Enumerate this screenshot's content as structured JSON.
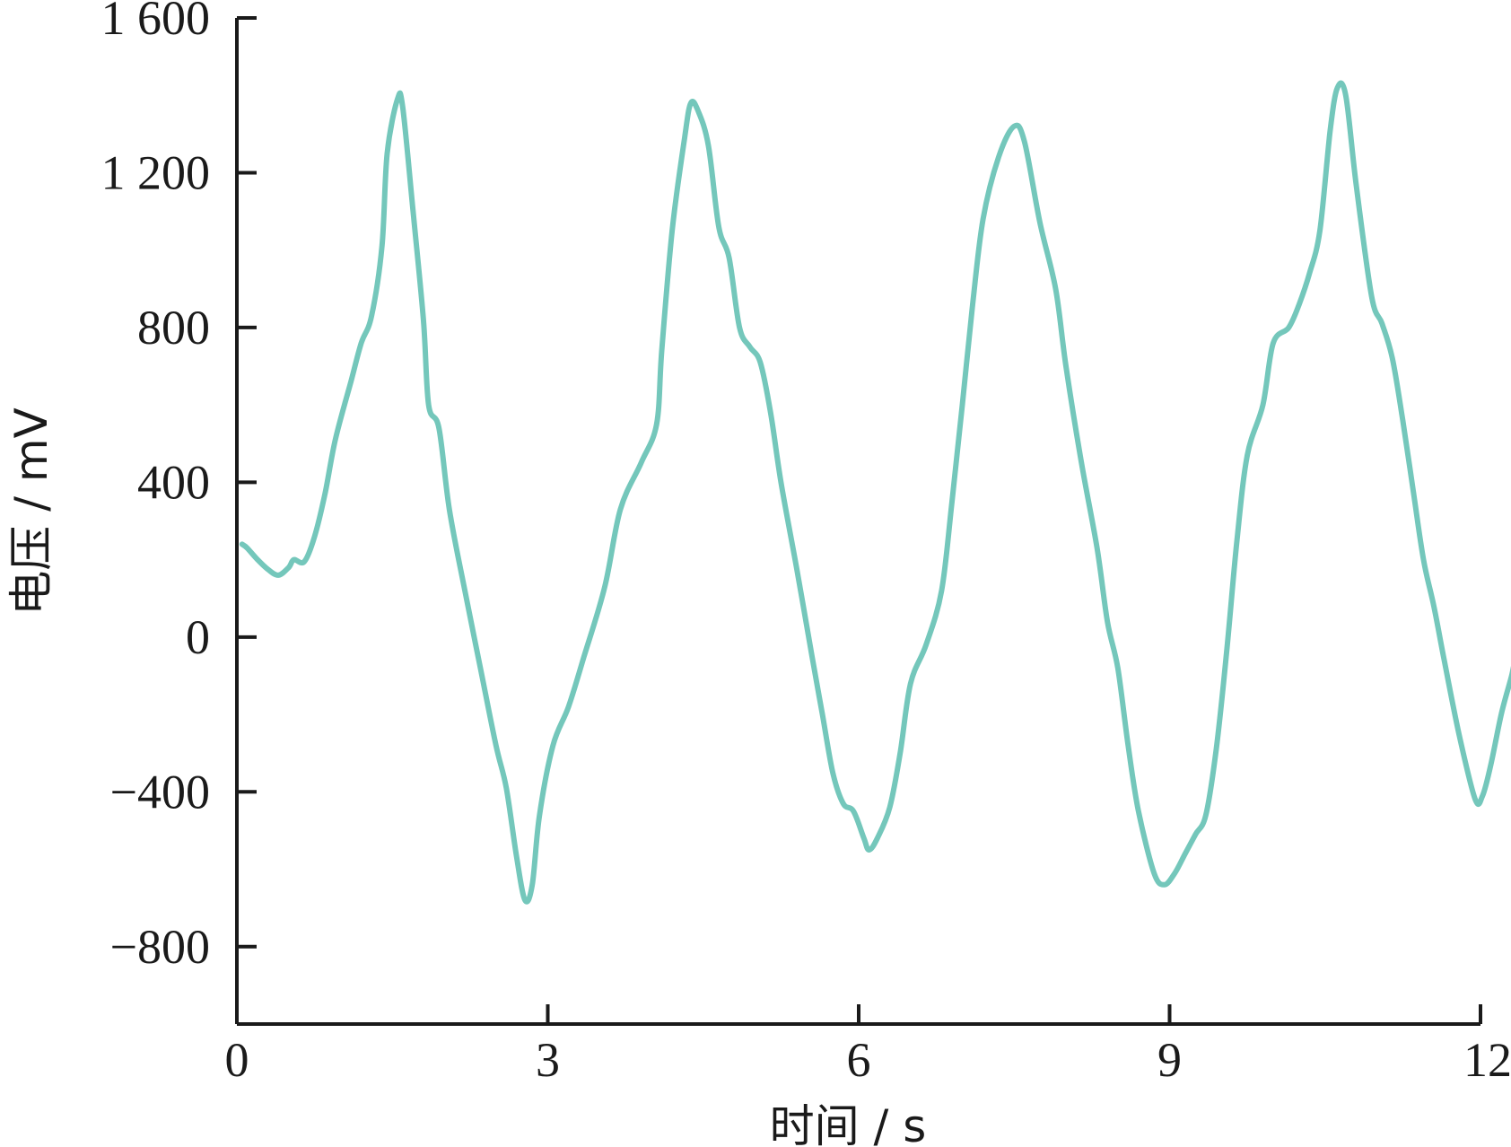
{
  "chart_data": {
    "type": "line",
    "title": "",
    "xlabel": "时间 / s",
    "ylabel": "电压 / mV",
    "xlim": [
      0,
      12
    ],
    "ylim": [
      -1000,
      1600
    ],
    "x_ticks": [
      0,
      3,
      6,
      9,
      12
    ],
    "x_tick_labels": [
      "0",
      "3",
      "6",
      "9",
      "12"
    ],
    "y_ticks": [
      -800,
      -400,
      0,
      400,
      800,
      1200,
      1600
    ],
    "y_tick_labels": [
      "−800",
      "−400",
      "0",
      "400",
      "800",
      "1 200",
      "1 600"
    ],
    "grid": false,
    "legend": "none",
    "series": [
      {
        "color": "#74c7bb",
        "points": [
          [
            0.05,
            240
          ],
          [
            0.1,
            230
          ],
          [
            0.2,
            200
          ],
          [
            0.3,
            175
          ],
          [
            0.4,
            160
          ],
          [
            0.5,
            180
          ],
          [
            0.55,
            200
          ],
          [
            0.65,
            195
          ],
          [
            0.75,
            260
          ],
          [
            0.85,
            370
          ],
          [
            0.95,
            510
          ],
          [
            1.1,
            660
          ],
          [
            1.2,
            760
          ],
          [
            1.3,
            830
          ],
          [
            1.4,
            1010
          ],
          [
            1.45,
            1250
          ],
          [
            1.55,
            1390
          ],
          [
            1.6,
            1370
          ],
          [
            1.7,
            1100
          ],
          [
            1.8,
            820
          ],
          [
            1.85,
            600
          ],
          [
            1.95,
            540
          ],
          [
            2.05,
            330
          ],
          [
            2.2,
            120
          ],
          [
            2.35,
            -80
          ],
          [
            2.5,
            -280
          ],
          [
            2.6,
            -390
          ],
          [
            2.7,
            -570
          ],
          [
            2.78,
            -680
          ],
          [
            2.85,
            -640
          ],
          [
            2.92,
            -460
          ],
          [
            3.05,
            -280
          ],
          [
            3.2,
            -180
          ],
          [
            3.35,
            -50
          ],
          [
            3.55,
            130
          ],
          [
            3.7,
            330
          ],
          [
            3.9,
            450
          ],
          [
            4.05,
            550
          ],
          [
            4.1,
            740
          ],
          [
            4.2,
            1050
          ],
          [
            4.32,
            1290
          ],
          [
            4.38,
            1380
          ],
          [
            4.45,
            1360
          ],
          [
            4.55,
            1270
          ],
          [
            4.65,
            1060
          ],
          [
            4.75,
            980
          ],
          [
            4.85,
            800
          ],
          [
            4.95,
            750
          ],
          [
            5.05,
            710
          ],
          [
            5.15,
            580
          ],
          [
            5.25,
            400
          ],
          [
            5.4,
            180
          ],
          [
            5.55,
            -50
          ],
          [
            5.65,
            -200
          ],
          [
            5.75,
            -350
          ],
          [
            5.85,
            -430
          ],
          [
            5.95,
            -450
          ],
          [
            6.05,
            -520
          ],
          [
            6.1,
            -550
          ],
          [
            6.18,
            -520
          ],
          [
            6.3,
            -440
          ],
          [
            6.4,
            -300
          ],
          [
            6.5,
            -120
          ],
          [
            6.65,
            -20
          ],
          [
            6.8,
            120
          ],
          [
            6.9,
            350
          ],
          [
            7.0,
            600
          ],
          [
            7.1,
            860
          ],
          [
            7.2,
            1080
          ],
          [
            7.35,
            1240
          ],
          [
            7.5,
            1320
          ],
          [
            7.6,
            1280
          ],
          [
            7.75,
            1070
          ],
          [
            7.9,
            900
          ],
          [
            8.0,
            700
          ],
          [
            8.15,
            450
          ],
          [
            8.3,
            230
          ],
          [
            8.4,
            40
          ],
          [
            8.5,
            -80
          ],
          [
            8.6,
            -280
          ],
          [
            8.7,
            -450
          ],
          [
            8.85,
            -610
          ],
          [
            8.95,
            -640
          ],
          [
            9.05,
            -610
          ],
          [
            9.15,
            -560
          ],
          [
            9.25,
            -510
          ],
          [
            9.35,
            -460
          ],
          [
            9.45,
            -290
          ],
          [
            9.55,
            -40
          ],
          [
            9.65,
            250
          ],
          [
            9.75,
            470
          ],
          [
            9.9,
            600
          ],
          [
            10.0,
            760
          ],
          [
            10.15,
            800
          ],
          [
            10.25,
            860
          ],
          [
            10.35,
            940
          ],
          [
            10.45,
            1050
          ],
          [
            10.55,
            1310
          ],
          [
            10.62,
            1420
          ],
          [
            10.7,
            1400
          ],
          [
            10.8,
            1170
          ],
          [
            10.95,
            880
          ],
          [
            11.05,
            810
          ],
          [
            11.15,
            720
          ],
          [
            11.25,
            560
          ],
          [
            11.35,
            380
          ],
          [
            11.45,
            200
          ],
          [
            11.55,
            80
          ],
          [
            11.65,
            -60
          ],
          [
            11.8,
            -260
          ],
          [
            11.95,
            -420
          ],
          [
            12.02,
            -410
          ],
          [
            12.1,
            -330
          ],
          [
            12.2,
            -200
          ],
          [
            12.3,
            -100
          ],
          [
            12.35,
            -40
          ],
          [
            12.42,
            -10
          ],
          [
            12.5,
            -50
          ],
          [
            12.55,
            -60
          ],
          [
            12.62,
            -55
          ],
          [
            12.68,
            -60
          ]
        ]
      }
    ]
  }
}
